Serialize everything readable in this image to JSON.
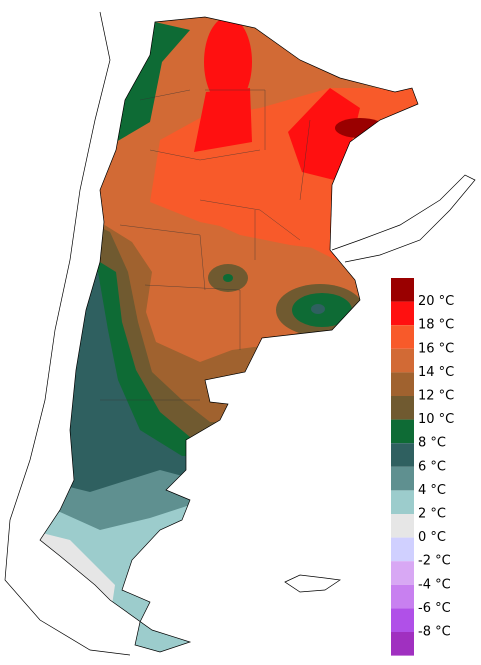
{
  "legend": {
    "labels": [
      "20 °C",
      "18 °C",
      "16 °C",
      "14 °C",
      "12 °C",
      "10 °C",
      "8 °C",
      "6 °C",
      "4 °C",
      "2 °C",
      "0 °C",
      "-2 °C",
      "-4 °C",
      "-6 °C",
      "-8 °C"
    ],
    "colors": [
      "#9a0000",
      "#ff1010",
      "#f85a2a",
      "#d26a35",
      "#a0622f",
      "#705a30",
      "#0e6b35",
      "#2f6060",
      "#5f9090",
      "#9ccccc",
      "#e6e6e6",
      "#d0d0ff",
      "#d8a8f4",
      "#c880f0",
      "#b050e8",
      "#a030c0"
    ]
  }
}
